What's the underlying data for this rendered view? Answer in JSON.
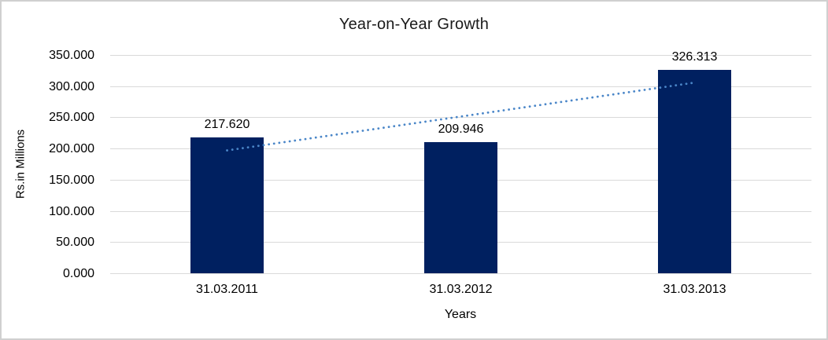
{
  "window": {
    "background_color": "#ffffff",
    "border_color": "#d0d0d0"
  },
  "chart_data": {
    "type": "bar",
    "title": "Year-on-Year Growth",
    "xlabel": "Years",
    "ylabel": "Rs.in Millions",
    "categories": [
      "31.03.2011",
      "31.03.2012",
      "31.03.2013"
    ],
    "series": [
      {
        "name": "Rs.in Millions",
        "values": [
          217.62,
          209.946,
          326.313
        ]
      }
    ],
    "value_labels": [
      "217.620",
      "209.946",
      "326.313"
    ],
    "ylim": [
      0,
      350
    ],
    "ytick_step": 50,
    "ytick_labels": [
      "0.000",
      "50.000",
      "100.000",
      "150.000",
      "200.000",
      "250.000",
      "300.000",
      "350.000"
    ],
    "grid": true,
    "legend_position": "none",
    "bar_color": "#002060",
    "gridline_color": "#d9d9d9",
    "text_color": "#000000",
    "trendline": {
      "type": "linear",
      "style": "dotted",
      "color": "#4a86c8",
      "spans_categories": [
        1,
        3
      ]
    }
  }
}
